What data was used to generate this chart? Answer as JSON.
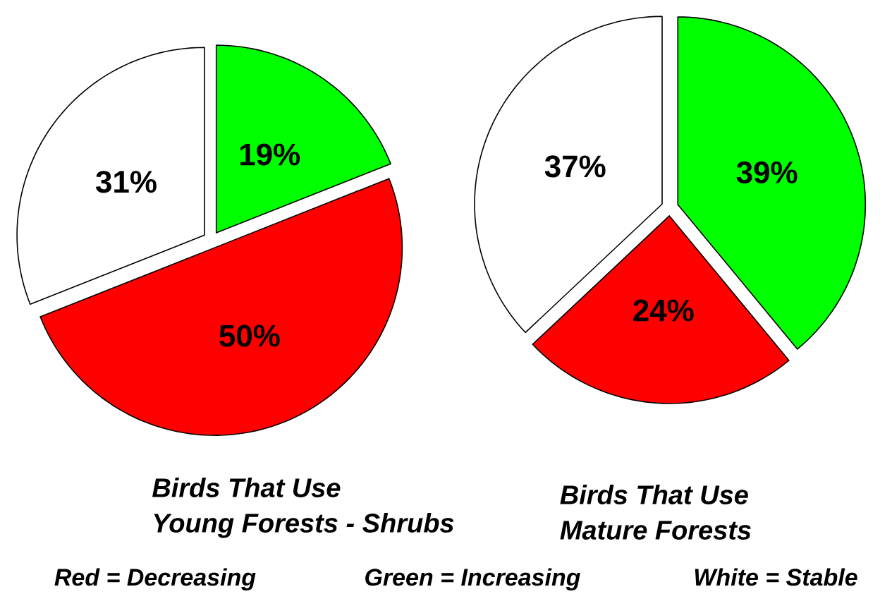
{
  "chart_data": [
    {
      "type": "pie",
      "title": "Birds That Use",
      "subtitle": "Young Forests - Shrubs",
      "categories": [
        null,
        null,
        null
      ],
      "values": [
        19,
        50,
        31
      ],
      "colors": [
        "#00ff00",
        "#ff0000",
        "#ffffff"
      ],
      "value_labels": [
        "19%",
        "50%",
        "31%"
      ],
      "annotations": [
        "Red = Decreasing",
        "Green = Increasing",
        "White = Stable"
      ]
    },
    {
      "type": "pie",
      "title": "Birds That Use",
      "subtitle": "Mature Forests",
      "categories": [
        null,
        null,
        null
      ],
      "values": [
        39,
        24,
        37
      ],
      "colors": [
        "#00ff00",
        "#ff0000",
        "#ffffff"
      ],
      "value_labels": [
        "39%",
        "24%",
        "37%"
      ]
    }
  ]
}
